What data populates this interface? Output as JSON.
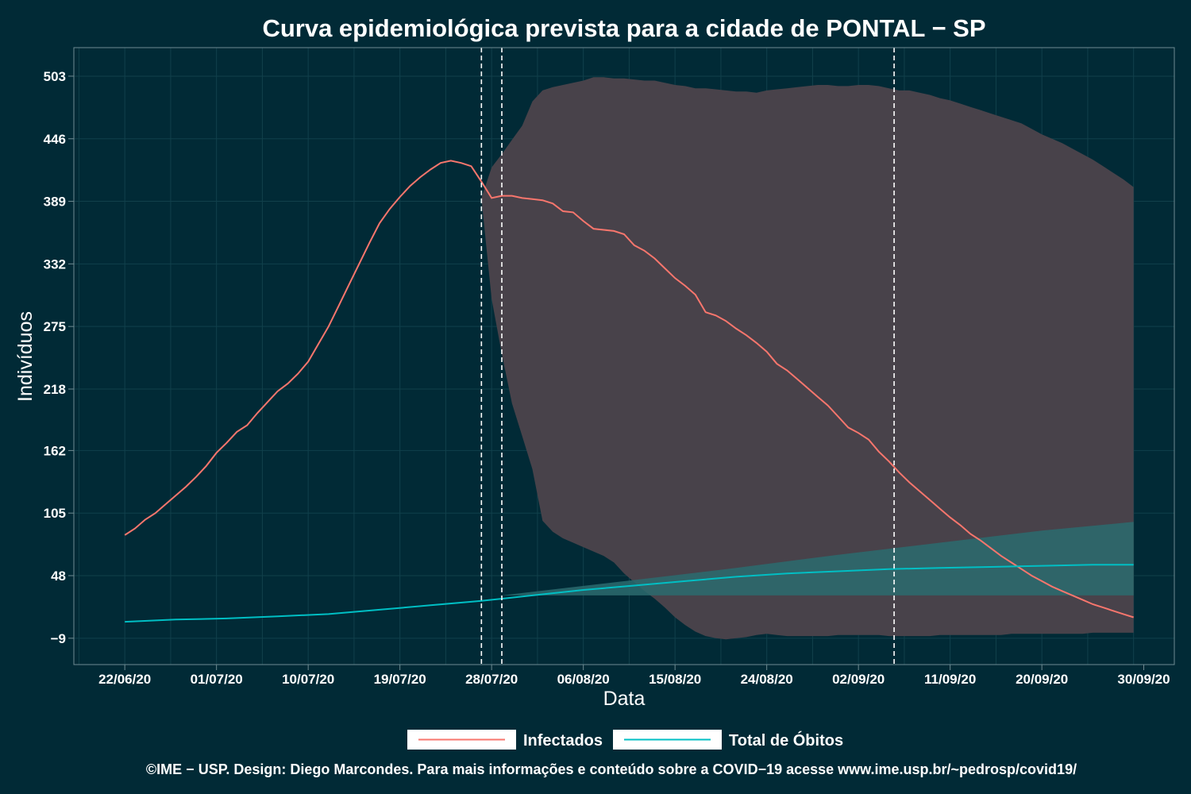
{
  "chart_data": {
    "type": "line",
    "title": "Curva epidemiológica prevista para a cidade de PONTAL − SP",
    "xlabel": "Data",
    "ylabel": "Indivíduos",
    "x_ticks": [
      "22/06/20",
      "01/07/20",
      "10/07/20",
      "19/07/20",
      "28/07/20",
      "06/08/20",
      "15/08/20",
      "24/08/20",
      "02/09/20",
      "11/09/20",
      "20/09/20",
      "30/09/20"
    ],
    "x_tick_days": [
      0,
      9,
      18,
      27,
      36,
      45,
      54,
      63,
      72,
      81,
      90,
      100
    ],
    "y_ticks": [
      -9,
      48,
      105,
      162,
      218,
      275,
      332,
      389,
      446,
      503
    ],
    "xlim": [
      -5,
      103
    ],
    "ylim": [
      -33,
      529
    ],
    "grid": true,
    "vlines_days": [
      35,
      37,
      75.5
    ],
    "legend_position": "bottom",
    "colors": {
      "background": "#012a36",
      "infectados": "#f8766d",
      "obitos": "#00bfc4",
      "band_infectados": "#48424a",
      "band_obitos": "#2c6b6e",
      "grid": "#11404b",
      "vline": "#ffffff"
    },
    "series": [
      {
        "name": "Infectados",
        "x": [
          0,
          1,
          2,
          3,
          4,
          5,
          6,
          7,
          8,
          9,
          10,
          11,
          12,
          13,
          14,
          15,
          16,
          17,
          18,
          19,
          20,
          21,
          22,
          23,
          24,
          25,
          26,
          27,
          28,
          29,
          30,
          31,
          32,
          33,
          34,
          35,
          36,
          37,
          38,
          39,
          40,
          41,
          42,
          43,
          44,
          45,
          46,
          47,
          48,
          49,
          50,
          51,
          52,
          53,
          54,
          55,
          56,
          57,
          58,
          59,
          60,
          61,
          62,
          63,
          64,
          65,
          66,
          67,
          68,
          69,
          70,
          71,
          72,
          73,
          74,
          75,
          76,
          77,
          78,
          79,
          80,
          81,
          82,
          83,
          84,
          85,
          86,
          87,
          88,
          89,
          90,
          91,
          92,
          93,
          94,
          95,
          96,
          97,
          98,
          99
        ],
        "y": [
          85,
          91,
          99,
          105,
          113,
          121,
          129,
          138,
          148,
          160,
          169,
          179,
          185,
          196,
          206,
          216,
          223,
          232,
          243,
          259,
          275,
          294,
          313,
          332,
          351,
          369,
          382,
          393,
          403,
          411,
          418,
          424,
          426,
          424,
          421,
          407,
          392,
          394,
          394,
          392,
          391,
          390,
          387,
          380,
          379,
          371,
          364,
          363,
          362,
          359,
          349,
          344,
          337,
          328,
          319,
          312,
          304,
          288,
          285,
          280,
          273,
          267,
          260,
          252,
          241,
          235,
          227,
          219,
          211,
          203,
          193,
          183,
          178,
          172,
          161,
          152,
          142,
          133,
          125,
          117,
          109,
          101,
          94,
          86,
          80,
          73,
          66,
          60,
          54,
          48,
          43,
          38,
          34,
          30,
          26,
          22,
          19,
          16,
          13,
          10
        ]
      },
      {
        "name": "Total de Óbitos",
        "x": [
          0,
          5,
          10,
          15,
          20,
          25,
          30,
          35,
          40,
          45,
          50,
          55,
          60,
          65,
          70,
          75,
          80,
          85,
          90,
          95,
          99
        ],
        "y": [
          6,
          8,
          9,
          11,
          13,
          17,
          21,
          25,
          30,
          35,
          39,
          43,
          47,
          50,
          52,
          54,
          55,
          56,
          57,
          58,
          58
        ]
      }
    ],
    "bands": [
      {
        "name": "Infectados",
        "x": [
          35,
          36,
          37,
          38,
          39,
          40,
          41,
          42,
          43,
          44,
          45,
          46,
          47,
          48,
          49,
          50,
          51,
          52,
          53,
          54,
          55,
          56,
          57,
          58,
          59,
          60,
          61,
          62,
          63,
          64,
          65,
          66,
          67,
          68,
          69,
          70,
          71,
          72,
          73,
          74,
          75,
          76,
          77,
          78,
          79,
          80,
          81,
          82,
          83,
          84,
          85,
          86,
          87,
          88,
          89,
          90,
          91,
          92,
          93,
          94,
          95,
          96,
          97,
          98,
          99
        ],
        "upper": [
          392,
          420,
          432,
          445,
          458,
          480,
          490,
          493,
          495,
          497,
          499,
          502,
          502,
          501,
          501,
          500,
          499,
          499,
          497,
          495,
          494,
          492,
          492,
          491,
          490,
          489,
          489,
          488,
          490,
          491,
          492,
          493,
          494,
          495,
          495,
          494,
          494,
          495,
          495,
          494,
          492,
          490,
          490,
          488,
          486,
          483,
          481,
          478,
          475,
          472,
          469,
          466,
          463,
          460,
          455,
          450,
          446,
          442,
          437,
          432,
          427,
          421,
          415,
          409,
          402
        ],
        "lower": [
          392,
          300,
          250,
          205,
          175,
          145,
          98,
          88,
          82,
          78,
          74,
          70,
          66,
          60,
          50,
          42,
          34,
          27,
          19,
          10,
          3,
          -3,
          -7,
          -9,
          -10,
          -9,
          -8,
          -6,
          -5,
          -6,
          -7,
          -7,
          -7,
          -7,
          -7,
          -6,
          -6,
          -6,
          -6,
          -6,
          -7,
          -7,
          -7,
          -7,
          -7,
          -6,
          -6,
          -6,
          -6,
          -6,
          -6,
          -6,
          -5,
          -5,
          -5,
          -5,
          -5,
          -5,
          -5,
          -5,
          -4,
          -4,
          -4,
          -4,
          -4
        ]
      },
      {
        "name": "Total de Óbitos",
        "x": [
          37,
          50,
          60,
          70,
          80,
          90,
          99
        ],
        "upper": [
          30,
          44,
          55,
          67,
          78,
          89,
          97
        ],
        "lower": [
          30,
          30,
          30,
          30,
          30,
          30,
          30
        ]
      }
    ]
  },
  "caption": "©IME − USP. Design: Diego Marcondes. Para mais informações e conteúdo sobre a COVID−19 acesse www.ime.usp.br/~pedrosp/covid19/"
}
